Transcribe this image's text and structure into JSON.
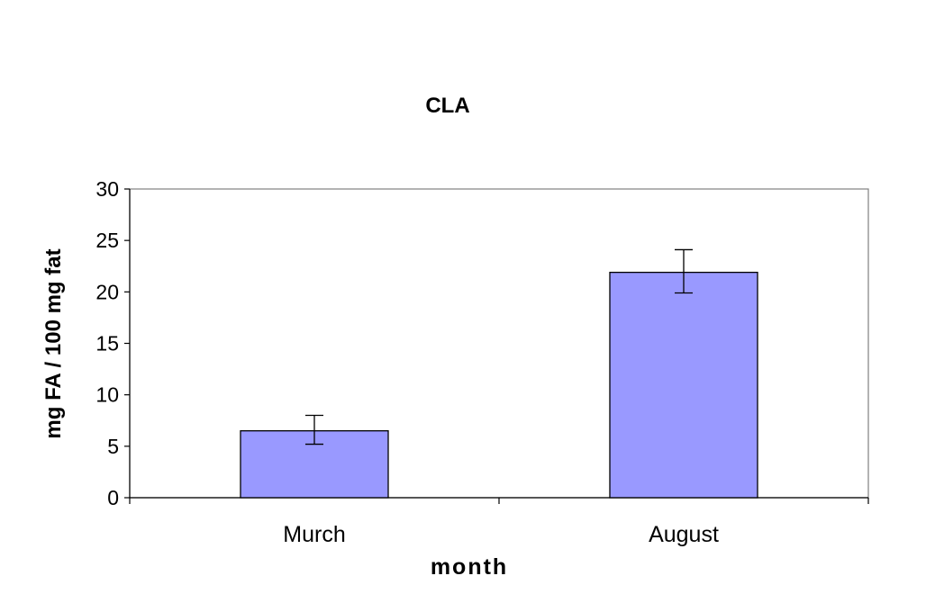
{
  "chart_data": {
    "type": "bar",
    "title": "CLA",
    "xlabel": "month",
    "ylabel": "mg FA / 100 mg fat",
    "categories": [
      "Murch",
      "August"
    ],
    "series": [
      {
        "values": [
          6.5,
          21.9
        ],
        "error_low": [
          5.2,
          19.9
        ],
        "error_high": [
          8.0,
          24.1
        ],
        "color": "#9999ff"
      }
    ],
    "ylim": [
      0,
      30
    ],
    "yticks": [
      "0",
      "5",
      "10",
      "15",
      "20",
      "25",
      "30"
    ],
    "grid": false,
    "legend": "none"
  }
}
